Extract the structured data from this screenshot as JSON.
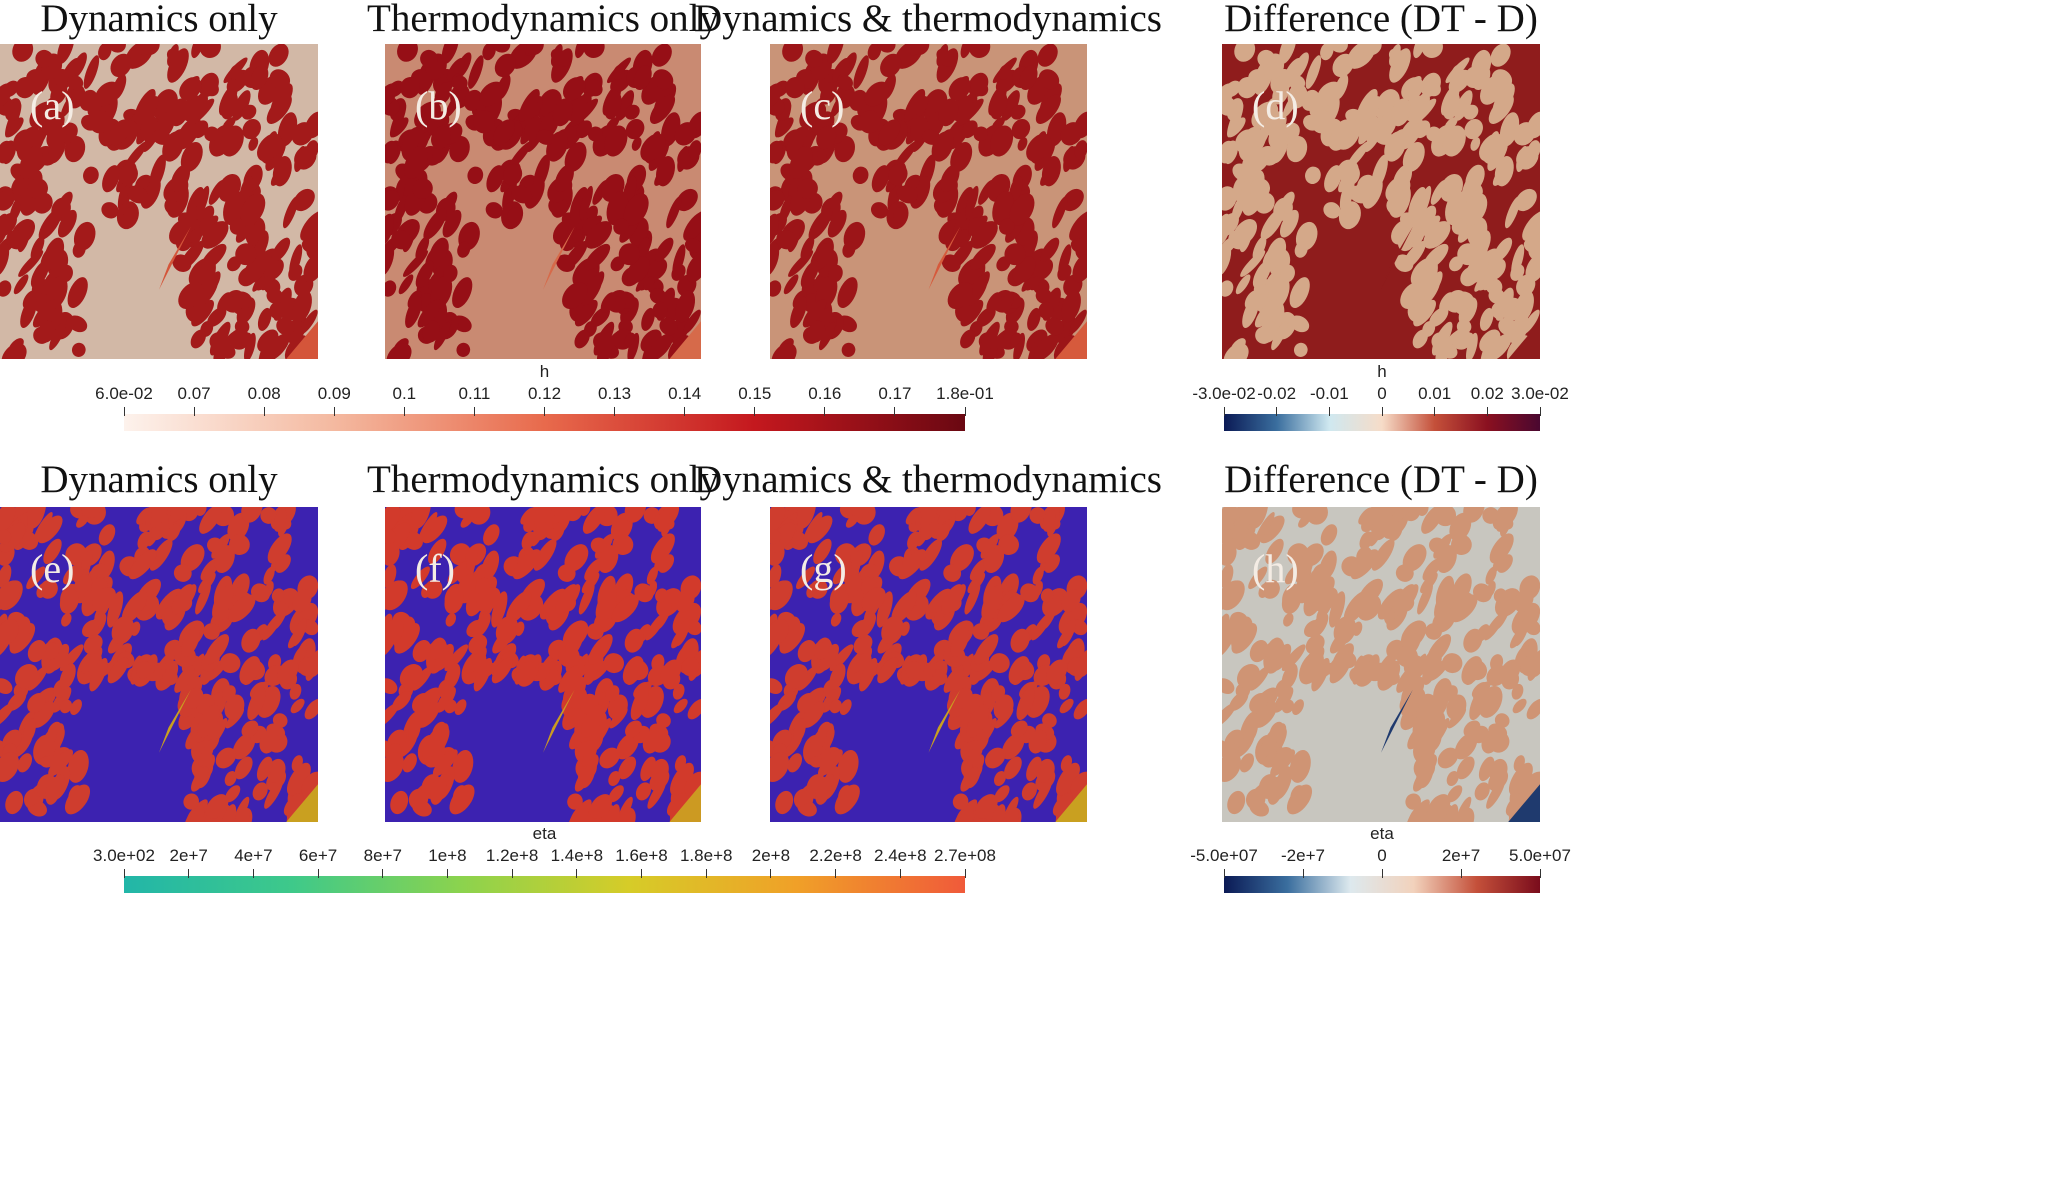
{
  "rows": [
    {
      "titles": [
        "Dynamics only",
        "Thermodynamics only",
        "Dynamics & thermodynamics",
        "Difference (DT - D)"
      ],
      "labels": [
        "(a)",
        "(b)",
        "(c)",
        "(d)"
      ],
      "colors": {
        "a": {
          "bg": "#d2b8a6",
          "fg": "#a31a1a",
          "accent": "#d4553a"
        },
        "b": {
          "bg": "#c98a72",
          "fg": "#960f16",
          "accent": "#d66a4a"
        },
        "c": {
          "bg": "#c99478",
          "fg": "#9c1518",
          "accent": "#d65a3c"
        },
        "d": {
          "bg": "#8f1c1c",
          "fg": "#d4a889",
          "accent": "#8f1c1c"
        }
      }
    },
    {
      "titles": [
        "Dynamics only",
        "Thermodynamics only",
        "Dynamics & thermodynamics",
        "Difference (DT - D)"
      ],
      "labels": [
        "(e)",
        "(f)",
        "(g)",
        "(h)"
      ],
      "colors": {
        "e": {
          "bg": "#3c22b0",
          "fg": "#cf3d2e",
          "accent": "#c9a020"
        },
        "f": {
          "bg": "#3c22b0",
          "fg": "#d23a2b",
          "accent": "#cc9a22"
        },
        "g": {
          "bg": "#3c22b0",
          "fg": "#cf3d2e",
          "accent": "#c9a020"
        },
        "h": {
          "bg": "#c8c6bf",
          "fg": "#cf9474",
          "accent": "#1f3a6e"
        }
      }
    }
  ],
  "colorbars": {
    "h_main": {
      "name": "h",
      "ticks": [
        "6.0e-02",
        "0.07",
        "0.08",
        "0.09",
        "0.1",
        "0.11",
        "0.12",
        "0.13",
        "0.14",
        "0.15",
        "0.16",
        "0.17",
        "1.8e-01"
      ],
      "colors": [
        "#fdf2ec",
        "#f4b9a0",
        "#e86a4c",
        "#c4181e",
        "#6a0812"
      ]
    },
    "h_diff": {
      "name": "h",
      "ticks": [
        "-3.0e-02",
        "-0.02",
        "-0.01",
        "0",
        "0.01",
        "0.02",
        "3.0e-02"
      ],
      "colors": [
        "#0b1a55",
        "#3a6e9e",
        "#cfe8f0",
        "#f6dcc8",
        "#c4503a",
        "#8a1020",
        "#4a0830"
      ]
    },
    "eta_main": {
      "name": "eta",
      "ticks": [
        "3.0e+02",
        "2e+7",
        "4e+7",
        "6e+7",
        "8e+7",
        "1e+8",
        "1.2e+8",
        "1.4e+8",
        "1.6e+8",
        "1.8e+8",
        "2e+8",
        "2.2e+8",
        "2.4e+8",
        "2.7e+08"
      ],
      "colors": [
        "#22b6a8",
        "#3ec98a",
        "#8bd34e",
        "#d6cc28",
        "#f0a028",
        "#f05a3a"
      ]
    },
    "eta_diff": {
      "name": "eta",
      "ticks": [
        "-5.0e+07",
        "-2e+7",
        "0",
        "2e+7",
        "5.0e+07"
      ],
      "colors": [
        "#0b1a55",
        "#3a6e9e",
        "#dde9ee",
        "#f2d2bc",
        "#c4503a",
        "#7a0c1c"
      ]
    }
  }
}
